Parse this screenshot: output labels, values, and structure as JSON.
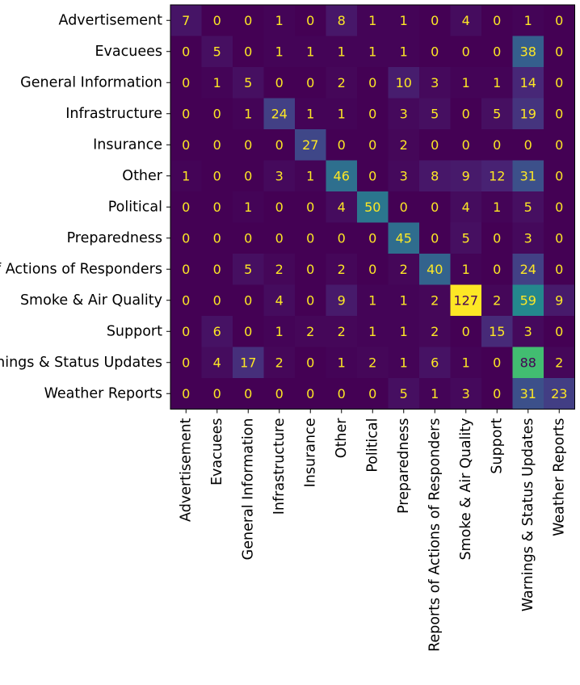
{
  "chart_data": {
    "type": "heatmap",
    "colormap": "viridis",
    "grid": false,
    "colorbar": false,
    "title": "",
    "xlabel": "",
    "ylabel": "",
    "value_range": [
      0,
      127
    ],
    "row_categories": [
      "Advertisement",
      "Evacuees",
      "General Information",
      "Infrastructure",
      "Insurance",
      "Other",
      "Political",
      "Preparedness",
      "Reports of Actions of Responders",
      "Smoke & Air Quality",
      "Support",
      "Warnings & Status Updates",
      "Weather Reports"
    ],
    "col_categories": [
      "Advertisement",
      "Evacuees",
      "General Information",
      "Infrastructure",
      "Insurance",
      "Other",
      "Political",
      "Preparedness",
      "Reports of Actions of Responders",
      "Smoke & Air Quality",
      "Support",
      "Warnings & Status Updates",
      "Weather Reports"
    ],
    "matrix": [
      [
        7,
        0,
        0,
        1,
        0,
        8,
        1,
        1,
        0,
        4,
        0,
        1,
        0
      ],
      [
        0,
        5,
        0,
        1,
        1,
        1,
        1,
        1,
        0,
        0,
        0,
        38,
        0
      ],
      [
        0,
        1,
        5,
        0,
        0,
        2,
        0,
        10,
        3,
        1,
        1,
        14,
        0
      ],
      [
        0,
        0,
        1,
        24,
        1,
        1,
        0,
        3,
        5,
        0,
        5,
        19,
        0
      ],
      [
        0,
        0,
        0,
        0,
        27,
        0,
        0,
        2,
        0,
        0,
        0,
        0,
        0
      ],
      [
        1,
        0,
        0,
        3,
        1,
        46,
        0,
        3,
        8,
        9,
        12,
        31,
        0
      ],
      [
        0,
        0,
        1,
        0,
        0,
        4,
        50,
        0,
        0,
        4,
        1,
        5,
        0
      ],
      [
        0,
        0,
        0,
        0,
        0,
        0,
        0,
        45,
        0,
        5,
        0,
        3,
        0
      ],
      [
        0,
        0,
        5,
        2,
        0,
        2,
        0,
        2,
        40,
        1,
        0,
        24,
        0
      ],
      [
        0,
        0,
        0,
        4,
        0,
        9,
        1,
        1,
        2,
        127,
        2,
        59,
        9
      ],
      [
        0,
        6,
        0,
        1,
        2,
        2,
        1,
        1,
        2,
        0,
        15,
        3,
        0
      ],
      [
        0,
        4,
        17,
        2,
        0,
        1,
        2,
        1,
        6,
        1,
        0,
        88,
        2
      ],
      [
        0,
        0,
        0,
        0,
        0,
        0,
        0,
        5,
        1,
        3,
        0,
        31,
        23
      ]
    ]
  }
}
